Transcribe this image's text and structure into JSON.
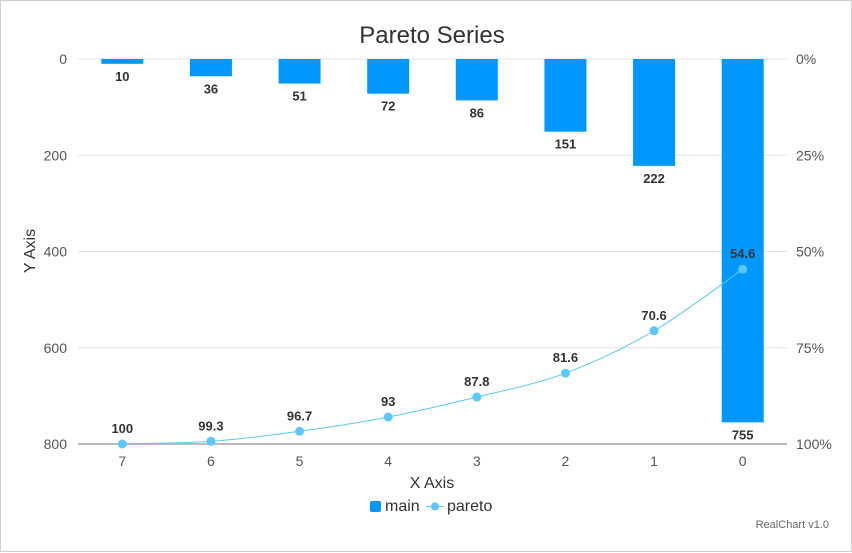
{
  "chart_data": {
    "type": "bar",
    "title": "Pareto Series",
    "xlabel": "X Axis",
    "ylabel": "Y Axis",
    "categories": [
      "7",
      "6",
      "5",
      "4",
      "3",
      "2",
      "1",
      "0"
    ],
    "ylim": [
      0,
      800
    ],
    "y_reversed": true,
    "y_ticks": [
      0,
      200,
      400,
      600,
      800
    ],
    "y2_ticks": [
      "0%",
      "25%",
      "50%",
      "75%",
      "100%"
    ],
    "series": [
      {
        "name": "main",
        "type": "bar",
        "values": [
          10,
          36,
          51,
          72,
          86,
          151,
          222,
          755
        ],
        "color": "#0098ff"
      },
      {
        "name": "pareto",
        "type": "line",
        "axis": "right-percent",
        "values": [
          100,
          99.3,
          96.7,
          93,
          87.8,
          81.6,
          70.6,
          54.6
        ],
        "color": "#5ac8fa"
      }
    ],
    "legend_position": "bottom-center",
    "grid": true
  },
  "credit": "RealChart v1.0"
}
